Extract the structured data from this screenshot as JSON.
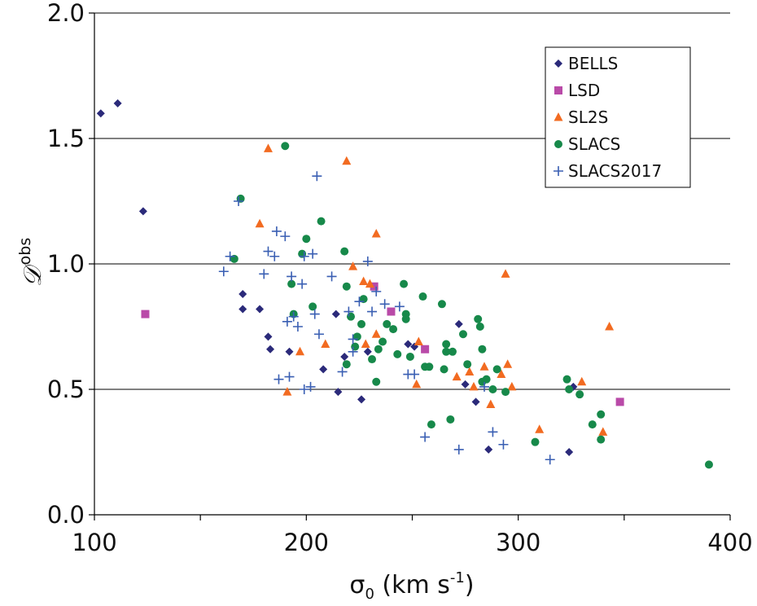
{
  "chart_data": {
    "type": "scatter",
    "xlabel": {
      "main": "σ",
      "sub": "0",
      "unit_pre": " (km s",
      "unit_sup": "-1",
      "unit_post": ")"
    },
    "ylabel": {
      "main": "𝒟",
      "sup": "obs"
    },
    "xlim": [
      100,
      400
    ],
    "ylim": [
      0.0,
      2.0
    ],
    "x_ticks": [
      100,
      200,
      300,
      400
    ],
    "x_tick_labels": [
      "100",
      "200",
      "300",
      "400"
    ],
    "y_ticks": [
      0.0,
      0.5,
      1.0,
      1.5,
      2.0
    ],
    "y_tick_labels": [
      "0.0",
      "0.5",
      "1.0",
      "1.5",
      "2.0"
    ],
    "grid": {
      "horizontal": true,
      "vertical": false
    },
    "legend_position": "top-right",
    "series": [
      {
        "name": "BELLS",
        "marker": "diamond",
        "color": "#2b2a7a",
        "points": [
          [
            103,
            1.6
          ],
          [
            111,
            1.64
          ],
          [
            123,
            1.21
          ],
          [
            170,
            0.88
          ],
          [
            170,
            0.82
          ],
          [
            178,
            0.82
          ],
          [
            182,
            0.71
          ],
          [
            183,
            0.66
          ],
          [
            192,
            0.65
          ],
          [
            208,
            0.58
          ],
          [
            214,
            0.8
          ],
          [
            215,
            0.49
          ],
          [
            218,
            0.63
          ],
          [
            226,
            0.46
          ],
          [
            229,
            0.65
          ],
          [
            248,
            0.68
          ],
          [
            251,
            0.67
          ],
          [
            272,
            0.76
          ],
          [
            275,
            0.52
          ],
          [
            280,
            0.45
          ],
          [
            286,
            0.26
          ],
          [
            324,
            0.25
          ],
          [
            326,
            0.51
          ]
        ]
      },
      {
        "name": "LSD",
        "marker": "square",
        "color": "#b94aa8",
        "points": [
          [
            124,
            0.8
          ],
          [
            232,
            0.91
          ],
          [
            240,
            0.81
          ],
          [
            256,
            0.66
          ],
          [
            348,
            0.45
          ]
        ]
      },
      {
        "name": "SL2S",
        "marker": "triangle",
        "color": "#f26b21",
        "points": [
          [
            178,
            1.16
          ],
          [
            182,
            1.46
          ],
          [
            191,
            0.49
          ],
          [
            197,
            0.65
          ],
          [
            209,
            0.68
          ],
          [
            219,
            1.41
          ],
          [
            222,
            0.99
          ],
          [
            227,
            0.93
          ],
          [
            228,
            0.68
          ],
          [
            230,
            0.92
          ],
          [
            233,
            1.12
          ],
          [
            233,
            0.72
          ],
          [
            252,
            0.52
          ],
          [
            253,
            0.69
          ],
          [
            271,
            0.55
          ],
          [
            277,
            0.57
          ],
          [
            279,
            0.51
          ],
          [
            284,
            0.59
          ],
          [
            287,
            0.44
          ],
          [
            292,
            0.56
          ],
          [
            294,
            0.96
          ],
          [
            295,
            0.6
          ],
          [
            297,
            0.51
          ],
          [
            310,
            0.34
          ],
          [
            330,
            0.53
          ],
          [
            340,
            0.33
          ],
          [
            343,
            0.75
          ]
        ]
      },
      {
        "name": "SLACS",
        "marker": "circle",
        "color": "#17894a",
        "points": [
          [
            166,
            1.02
          ],
          [
            169,
            1.26
          ],
          [
            190,
            1.47
          ],
          [
            193,
            0.92
          ],
          [
            194,
            0.8
          ],
          [
            198,
            1.04
          ],
          [
            200,
            1.1
          ],
          [
            203,
            0.83
          ],
          [
            207,
            1.17
          ],
          [
            218,
            1.05
          ],
          [
            219,
            0.91
          ],
          [
            219,
            0.6
          ],
          [
            221,
            0.79
          ],
          [
            223,
            0.67
          ],
          [
            224,
            0.71
          ],
          [
            226,
            0.76
          ],
          [
            227,
            0.86
          ],
          [
            231,
            0.62
          ],
          [
            233,
            0.53
          ],
          [
            234,
            0.66
          ],
          [
            236,
            0.69
          ],
          [
            238,
            0.76
          ],
          [
            241,
            0.74
          ],
          [
            243,
            0.64
          ],
          [
            246,
            0.92
          ],
          [
            247,
            0.8
          ],
          [
            247,
            0.78
          ],
          [
            249,
            0.63
          ],
          [
            255,
            0.87
          ],
          [
            256,
            0.59
          ],
          [
            258,
            0.59
          ],
          [
            259,
            0.36
          ],
          [
            264,
            0.84
          ],
          [
            265,
            0.58
          ],
          [
            266,
            0.65
          ],
          [
            266,
            0.68
          ],
          [
            268,
            0.38
          ],
          [
            269,
            0.65
          ],
          [
            274,
            0.72
          ],
          [
            276,
            0.6
          ],
          [
            281,
            0.78
          ],
          [
            282,
            0.75
          ],
          [
            283,
            0.66
          ],
          [
            283,
            0.53
          ],
          [
            285,
            0.54
          ],
          [
            288,
            0.5
          ],
          [
            290,
            0.58
          ],
          [
            294,
            0.49
          ],
          [
            308,
            0.29
          ],
          [
            323,
            0.54
          ],
          [
            324,
            0.5
          ],
          [
            329,
            0.48
          ],
          [
            335,
            0.36
          ],
          [
            339,
            0.4
          ],
          [
            339,
            0.3
          ],
          [
            390,
            0.2
          ]
        ]
      },
      {
        "name": "SLACS2017",
        "marker": "plus",
        "color": "#3a5fb3",
        "points": [
          [
            161,
            0.97
          ],
          [
            164,
            1.03
          ],
          [
            168,
            1.25
          ],
          [
            180,
            0.96
          ],
          [
            182,
            1.05
          ],
          [
            185,
            1.03
          ],
          [
            186,
            1.13
          ],
          [
            187,
            0.54
          ],
          [
            190,
            1.11
          ],
          [
            191,
            0.77
          ],
          [
            192,
            0.55
          ],
          [
            193,
            0.95
          ],
          [
            194,
            0.79
          ],
          [
            196,
            0.75
          ],
          [
            198,
            0.92
          ],
          [
            199,
            0.5
          ],
          [
            199,
            1.03
          ],
          [
            202,
            0.51
          ],
          [
            203,
            1.04
          ],
          [
            204,
            0.8
          ],
          [
            205,
            1.35
          ],
          [
            206,
            0.72
          ],
          [
            212,
            0.95
          ],
          [
            217,
            0.57
          ],
          [
            220,
            0.81
          ],
          [
            222,
            0.65
          ],
          [
            222,
            0.7
          ],
          [
            225,
            0.85
          ],
          [
            229,
            1.01
          ],
          [
            231,
            0.81
          ],
          [
            233,
            0.89
          ],
          [
            237,
            0.84
          ],
          [
            244,
            0.83
          ],
          [
            248,
            0.56
          ],
          [
            251,
            0.56
          ],
          [
            256,
            0.31
          ],
          [
            272,
            0.26
          ],
          [
            284,
            0.51
          ],
          [
            288,
            0.33
          ],
          [
            293,
            0.28
          ],
          [
            315,
            0.22
          ]
        ]
      }
    ]
  }
}
